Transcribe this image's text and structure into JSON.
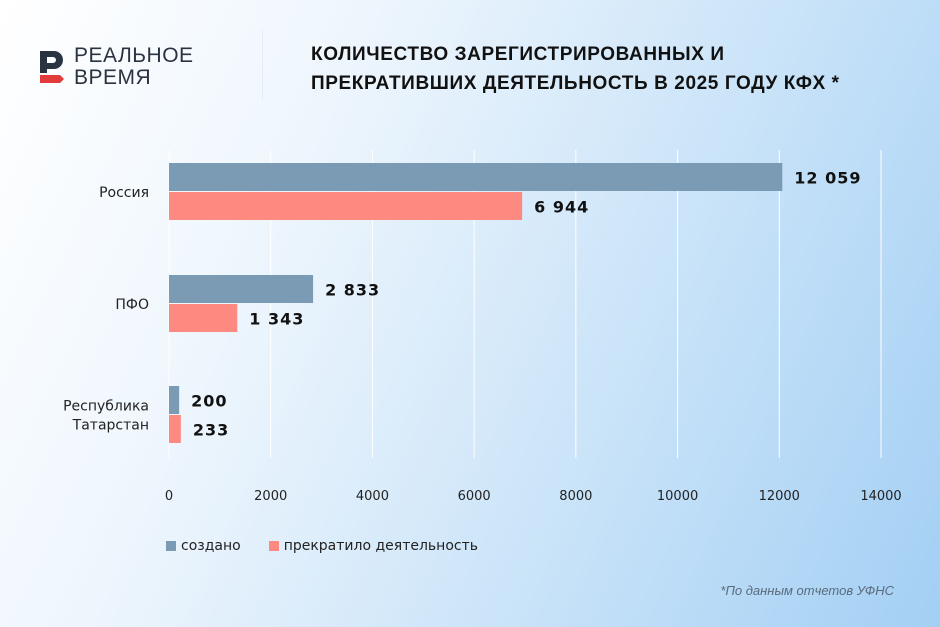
{
  "logo": {
    "line1": "РЕАЛЬНОЕ",
    "line2": "ВРЕМЯ"
  },
  "title": {
    "line1": "КОЛИЧЕСТВО ЗАРЕГИСТРИРОВАННЫХ И",
    "line2": "ПРЕКРАТИВШИХ ДЕЯТЕЛЬНОСТЬ В 2025 ГОДУ КФХ *"
  },
  "footnote": "*По данным отчетов УФНС",
  "chart_data": {
    "type": "bar",
    "orientation": "horizontal",
    "categories": [
      "Россия",
      "ПФО",
      "Республика Татарстан"
    ],
    "series": [
      {
        "name": "создано",
        "color": "#7b9ab3",
        "values": [
          12059,
          2833,
          200
        ],
        "labels": [
          "12 059",
          "2 833",
          "200"
        ]
      },
      {
        "name": "прекратило деятельность",
        "color": "#fd8a80",
        "values": [
          6944,
          1343,
          233
        ],
        "labels": [
          "6 944",
          "1 343",
          "233"
        ]
      }
    ],
    "xlim": [
      0,
      14000
    ],
    "xticks": [
      0,
      2000,
      4000,
      6000,
      8000,
      10000,
      12000,
      14000
    ],
    "grid": true,
    "legend": "bottom-left"
  }
}
